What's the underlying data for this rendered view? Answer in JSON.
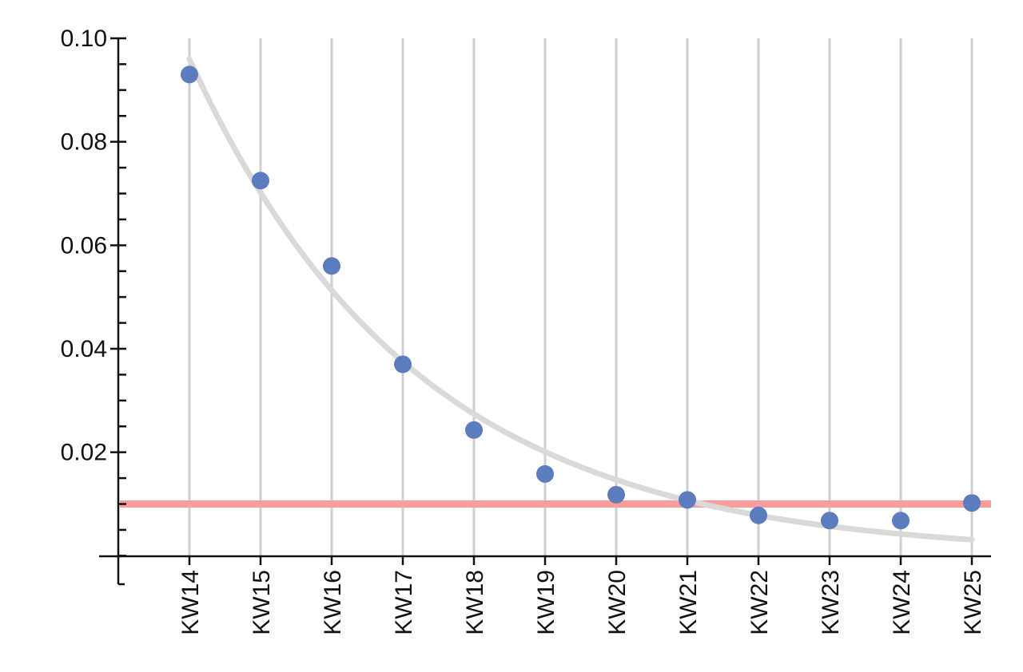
{
  "chart_data": {
    "type": "scatter",
    "title": "",
    "xlabel": "",
    "ylabel": "",
    "categories": [
      "KW14",
      "KW15",
      "KW16",
      "KW17",
      "KW18",
      "KW19",
      "KW20",
      "KW21",
      "KW22",
      "KW23",
      "KW24",
      "KW25"
    ],
    "series": [
      {
        "values": [
          0.093,
          0.0725,
          0.056,
          0.037,
          0.0243,
          0.0158,
          0.0118,
          0.0108,
          0.0078,
          0.0068,
          0.0068,
          0.0102
        ]
      }
    ],
    "trend_line": {
      "type": "exponential",
      "values": [
        0.096,
        0.0702,
        0.0513,
        0.0375,
        0.0274,
        0.0201,
        0.0147,
        0.0107,
        0.0078,
        0.0057,
        0.0042,
        0.0031
      ]
    },
    "threshold": 0.01,
    "ylim": [
      -0.0055,
      0.1
    ],
    "yticks": [
      "0.10",
      "0.08",
      "0.06",
      "0.04",
      "0.02"
    ],
    "ytick_values": [
      0.1,
      0.08,
      0.06,
      0.04,
      0.02
    ],
    "grid": "vertical",
    "colors": {
      "points": "#5b7dbd",
      "trend_line": "#d9d9d9",
      "threshold": "#fa9d9d",
      "grid": "#cfcfcf",
      "axis": "#111111"
    }
  }
}
